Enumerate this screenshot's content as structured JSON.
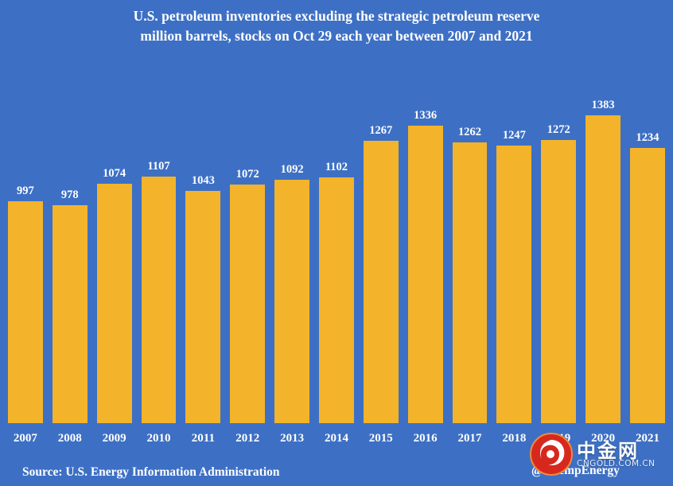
{
  "title": {
    "line1": "U.S. petroleum inventories excluding the strategic petroleum reserve",
    "line2": "million barrels, stocks on Oct 29 each year between 2007 and 2021"
  },
  "footer": {
    "source": "Source: U.S. Energy Information Administration",
    "handle": "@JKempEnergy"
  },
  "watermark": {
    "name": "中金网",
    "url": "CNGOLD.COM.CN"
  },
  "colors": {
    "background": "#3d70c4",
    "bar": "#f3b32a",
    "text": "#ffffff",
    "logo_red": "#d7281e"
  },
  "chart_data": {
    "type": "bar",
    "title": "U.S. petroleum inventories excluding the strategic petroleum reserve",
    "subtitle": "million barrels, stocks on Oct 29 each year between 2007 and 2021",
    "categories": [
      "2007",
      "2008",
      "2009",
      "2010",
      "2011",
      "2012",
      "2013",
      "2014",
      "2015",
      "2016",
      "2017",
      "2018",
      "2019",
      "2020",
      "2021"
    ],
    "values": [
      997,
      978,
      1074,
      1107,
      1043,
      1072,
      1092,
      1102,
      1267,
      1336,
      1262,
      1247,
      1272,
      1383,
      1234
    ],
    "xlabel": "",
    "ylabel": "million barrels",
    "ylim": [
      0,
      1400
    ],
    "grid": false,
    "legend_position": "none",
    "data_labels": true,
    "source": "U.S. Energy Information Administration"
  }
}
